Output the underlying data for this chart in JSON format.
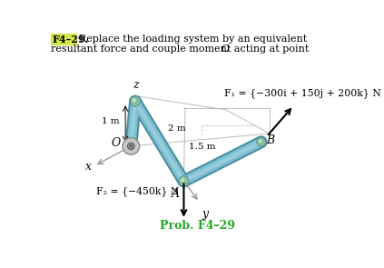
{
  "title_label": "F4–29.",
  "prob_label": "Prob. F4–29",
  "f1_label": "F₁ = {−300i + 150j + 200k} N",
  "f2_label": "F₂ = {−450k} N",
  "dim_1m": "1 m",
  "dim_2m": "2 m",
  "dim_15m": "1.5 m",
  "label_O": "O",
  "label_A": "A",
  "label_B": "B",
  "label_x": "x",
  "label_y": "y",
  "label_z": "z",
  "bg_color": "#ffffff",
  "title_highlight": "#d4e84a",
  "title_highlight_text_color": "#000000",
  "prob_color": "#22aa22",
  "text_color": "#000000",
  "tube_color": "#7fbfcf",
  "tube_edge_color": "#4a8fa0",
  "joint_color": "#88bb99",
  "axis_color": "#999999",
  "origin_disk_color": "#c8c8c8",
  "origin_disk_edge": "#888888"
}
